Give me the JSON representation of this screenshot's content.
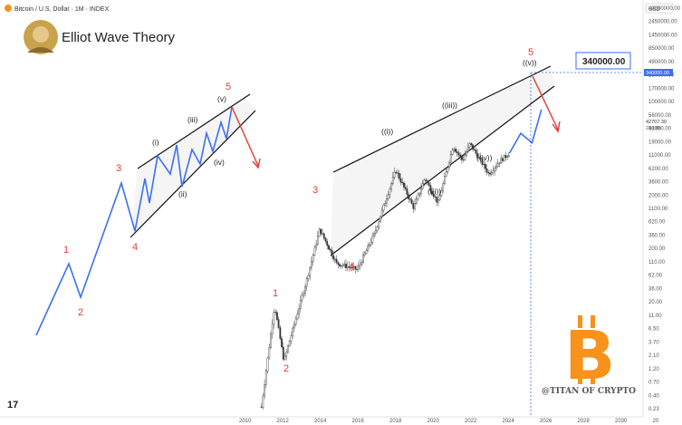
{
  "header": {
    "symbol_line": "Bitcoin / U.S. Dollar · 1M · INDEX",
    "title": "Elliot Wave Theory",
    "currency": "USD"
  },
  "watermark": "@TITAN OF CRYPTO",
  "target_label": "340000.00",
  "price_tags": {
    "target": "340000.00",
    "current": "42707.30",
    "countdown": "24d 8h"
  },
  "colors": {
    "wave_line": "#3d6ff2",
    "wave_label": "#e53935",
    "projection_arrow": "#e53935",
    "target_box": "#3d6ff2",
    "logo_orange": "#f7931a",
    "channel": "#111111"
  },
  "icons": [
    "bitcoin-logo-icon",
    "avatar-icon",
    "tradingview-logo-icon"
  ],
  "chart_data": {
    "type": "line",
    "title": "Elliot Wave Theory",
    "y_scale": "log",
    "x_ticks": [
      "2010",
      "2012",
      "2014",
      "2016",
      "2018",
      "2020",
      "2022",
      "2024",
      "2026",
      "2028",
      "2030",
      "20"
    ],
    "y_ticks": [
      "42000000.00",
      "2450000.00",
      "1450000.00",
      "850000.00",
      "490000.00",
      "290000.00",
      "170000.00",
      "100000.00",
      "56000.00",
      "33000.00",
      "19000.00",
      "11000.00",
      "6200.00",
      "3600.00",
      "2000.00",
      "1100.00",
      "620.00",
      "360.00",
      "200.00",
      "110.00",
      "62.00",
      "36.00",
      "20.00",
      "11.00",
      "6.50",
      "3.70",
      "2.10",
      "1.20",
      "0.70",
      "0.40",
      "0.23"
    ],
    "series": [
      {
        "name": "",
        "x": [
          2010.8,
          2011.5,
          2012.0,
          2013.2,
          2013.9,
          2014.8,
          2015.9,
          2016.8,
          2017.95,
          2018.9,
          2019.5,
          2020.2,
          2021.0,
          2021.5,
          2021.9,
          2022.9,
          2023.5,
          2024.0
        ],
        "y": [
          0.25,
          31,
          2.2,
          100,
          1150,
          230,
          170,
          900,
          19000,
          3200,
          13000,
          4000,
          60000,
          30000,
          67000,
          16000,
          30000,
          42707
        ]
      },
      {
        "name": "",
        "x": [
          2024.0,
          2024.6,
          2025.2,
          2025.7
        ],
        "y": [
          42707,
          110000,
          70000,
          340000
        ]
      }
    ],
    "schematic_waves": [
      {
        "label": "1",
        "y": 113
      },
      {
        "label": "2",
        "y": 87
      },
      {
        "label": "3",
        "y": 140
      },
      {
        "label": "4",
        "y": 55
      },
      {
        "label": "5",
        "y": 250
      }
    ],
    "wave_labels": [
      "1",
      "2",
      "3",
      "4",
      "5"
    ],
    "sub_wave_labels": [
      "(i)",
      "(ii)",
      "(iii)",
      "(iv)",
      "(v)"
    ],
    "main_sub_wave_labels": [
      "((i))",
      "((ii))",
      "((iii))",
      "((iv))",
      "((v))"
    ],
    "annotations": [
      "340000.00",
      "@TITAN OF CRYPTO"
    ],
    "grid": false,
    "legend": "none"
  }
}
